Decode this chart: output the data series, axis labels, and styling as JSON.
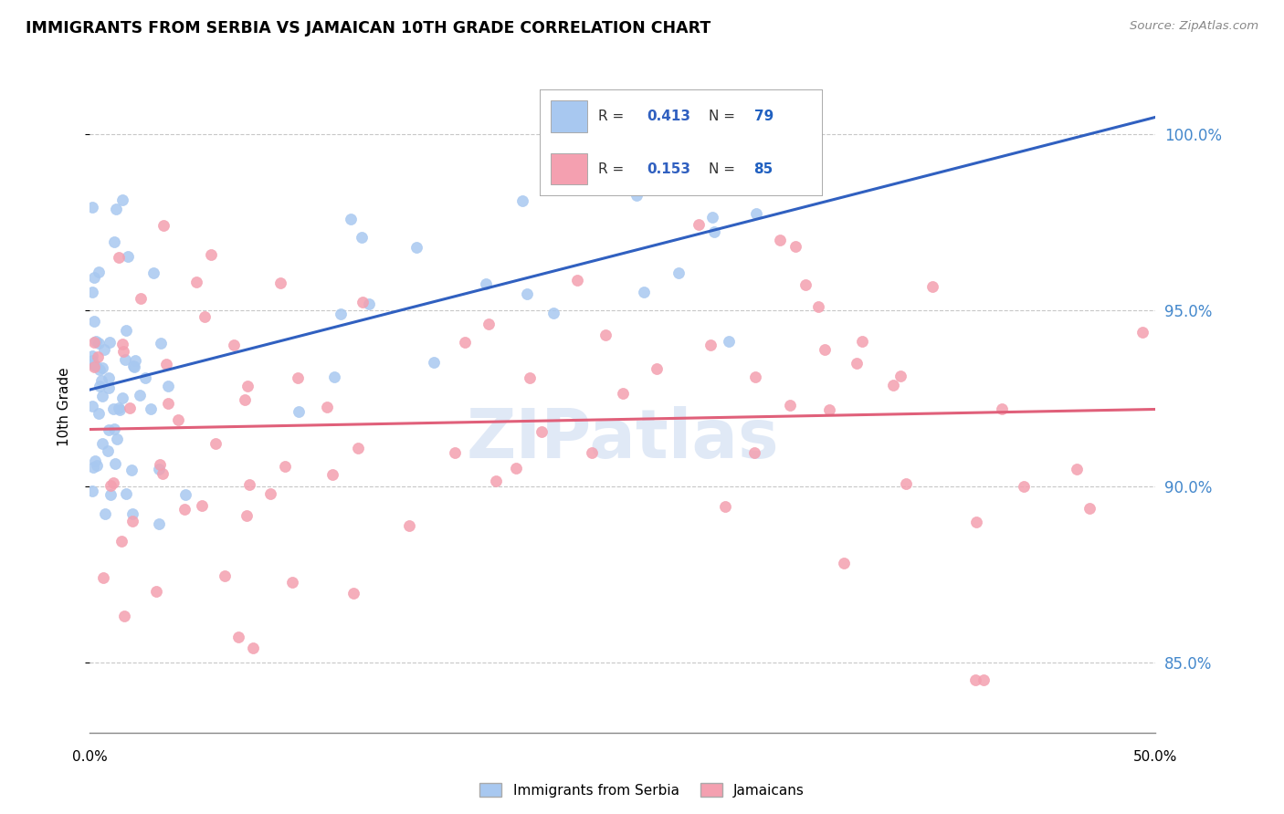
{
  "title": "IMMIGRANTS FROM SERBIA VS JAMAICAN 10TH GRADE CORRELATION CHART",
  "source": "Source: ZipAtlas.com",
  "ylabel": "10th Grade",
  "serbia_color": "#a8c8f0",
  "jamaica_color": "#f4a0b0",
  "serbia_line_color": "#3060c0",
  "jamaica_line_color": "#e0607a",
  "serbia_R": 0.413,
  "serbia_N": 79,
  "jamaica_R": 0.153,
  "jamaica_N": 85,
  "legend_R_color": "#3060c0",
  "legend_N_color": "#2060c0",
  "watermark": "ZIPatlas",
  "y_ticks": [
    85.0,
    90.0,
    95.0,
    100.0
  ],
  "y_tick_labels": [
    "85.0%",
    "90.0%",
    "95.0%",
    "100.0%"
  ],
  "x_min": 0.0,
  "x_max": 0.5,
  "y_min": 83.0,
  "y_max": 101.5
}
